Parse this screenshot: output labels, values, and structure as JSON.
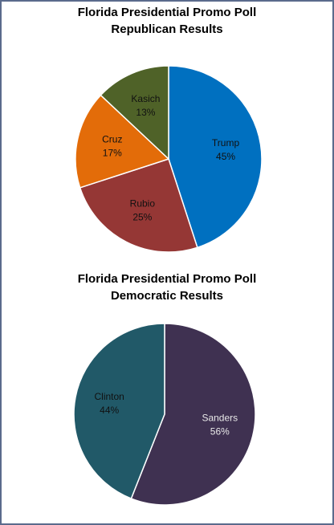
{
  "chart_data": [
    {
      "type": "pie",
      "title": "Florida Presidential Promo Poll",
      "subtitle": "Republican Results",
      "categories": [
        "Trump",
        "Rubio",
        "Cruz",
        "Kasich"
      ],
      "values": [
        45,
        25,
        17,
        13
      ],
      "value_labels": [
        "45%",
        "25%",
        "17%",
        "13%"
      ],
      "colors": [
        "#0070c0",
        "#953735",
        "#e36c09",
        "#4f6228"
      ]
    },
    {
      "type": "pie",
      "title": "Florida Presidential Promo Poll",
      "subtitle": "Democratic Results",
      "categories": [
        "Sanders",
        "Clinton"
      ],
      "values": [
        56,
        44
      ],
      "value_labels": [
        "56%",
        "44%"
      ],
      "colors": [
        "#3f3151",
        "#215968"
      ]
    }
  ]
}
